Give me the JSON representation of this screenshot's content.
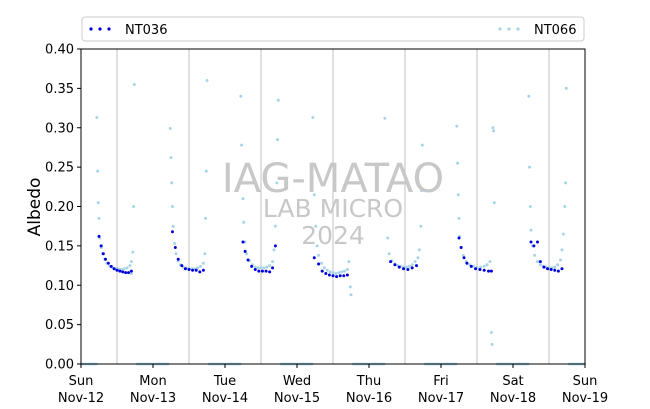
{
  "chart_data": {
    "type": "scatter",
    "title": "",
    "xlabel": "",
    "ylabel": "Albedo",
    "ylim": [
      0,
      0.4
    ],
    "yticks": [
      "0.00",
      "0.05",
      "0.10",
      "0.15",
      "0.20",
      "0.25",
      "0.30",
      "0.35",
      "0.40"
    ],
    "xlim": [
      "2023-11-12",
      "2023-11-19"
    ],
    "xticks": [
      {
        "day": "Sun",
        "date": "Nov-12"
      },
      {
        "day": "Mon",
        "date": "Nov-13"
      },
      {
        "day": "Tue",
        "date": "Nov-14"
      },
      {
        "day": "Wed",
        "date": "Nov-15"
      },
      {
        "day": "Thu",
        "date": "Nov-16"
      },
      {
        "day": "Fri",
        "date": "Nov-17"
      },
      {
        "day": "Sat",
        "date": "Nov-18"
      },
      {
        "day": "Sun",
        "date": "Nov-19"
      }
    ],
    "gridlines": "vertical at noon of each day",
    "legend": {
      "placement": "top, above plot",
      "entries": [
        "NT036",
        "NT066"
      ]
    },
    "watermark": [
      "IAG-MATAO",
      "LAB MICRO",
      "2024"
    ],
    "series": [
      {
        "name": "NT036",
        "color": "#0000dd",
        "days": [
          {
            "day": 0,
            "points": [
              [
                0.25,
                0.162
              ],
              [
                0.28,
                0.15
              ],
              [
                0.31,
                0.14
              ],
              [
                0.34,
                0.133
              ],
              [
                0.38,
                0.128
              ],
              [
                0.42,
                0.124
              ],
              [
                0.46,
                0.121
              ],
              [
                0.5,
                0.119
              ],
              [
                0.54,
                0.118
              ],
              [
                0.58,
                0.117
              ],
              [
                0.62,
                0.116
              ],
              [
                0.66,
                0.116
              ],
              [
                0.7,
                0.118
              ]
            ]
          },
          {
            "day": 1,
            "points": [
              [
                0.27,
                0.168
              ],
              [
                0.31,
                0.148
              ],
              [
                0.35,
                0.133
              ],
              [
                0.4,
                0.125
              ],
              [
                0.45,
                0.121
              ],
              [
                0.5,
                0.12
              ],
              [
                0.55,
                0.119
              ],
              [
                0.6,
                0.119
              ],
              [
                0.65,
                0.117
              ],
              [
                0.7,
                0.119
              ]
            ]
          },
          {
            "day": 2,
            "points": [
              [
                0.25,
                0.155
              ],
              [
                0.28,
                0.143
              ],
              [
                0.32,
                0.132
              ],
              [
                0.37,
                0.124
              ],
              [
                0.42,
                0.12
              ],
              [
                0.47,
                0.118
              ],
              [
                0.52,
                0.118
              ],
              [
                0.57,
                0.118
              ],
              [
                0.62,
                0.117
              ],
              [
                0.66,
                0.122
              ],
              [
                0.7,
                0.15
              ]
            ]
          },
          {
            "day": 3,
            "points": [
              [
                0.24,
                0.135
              ],
              [
                0.3,
                0.127
              ],
              [
                0.35,
                0.118
              ],
              [
                0.4,
                0.115
              ],
              [
                0.45,
                0.113
              ],
              [
                0.5,
                0.112
              ],
              [
                0.55,
                0.111
              ],
              [
                0.6,
                0.112
              ],
              [
                0.65,
                0.112
              ],
              [
                0.7,
                0.113
              ]
            ]
          },
          {
            "day": 4,
            "points": [
              [
                0.3,
                0.13
              ],
              [
                0.36,
                0.126
              ],
              [
                0.42,
                0.123
              ],
              [
                0.48,
                0.121
              ],
              [
                0.54,
                0.12
              ],
              [
                0.6,
                0.122
              ],
              [
                0.66,
                0.125
              ]
            ]
          },
          {
            "day": 5,
            "points": [
              [
                0.25,
                0.16
              ],
              [
                0.28,
                0.148
              ],
              [
                0.32,
                0.135
              ],
              [
                0.36,
                0.128
              ],
              [
                0.42,
                0.124
              ],
              [
                0.48,
                0.121
              ],
              [
                0.54,
                0.12
              ],
              [
                0.6,
                0.119
              ],
              [
                0.66,
                0.118
              ],
              [
                0.7,
                0.118
              ]
            ]
          },
          {
            "day": 6,
            "points": [
              [
                0.25,
                0.155
              ],
              [
                0.29,
                0.15
              ],
              [
                0.34,
                0.155
              ],
              [
                0.38,
                0.13
              ],
              [
                0.43,
                0.123
              ],
              [
                0.48,
                0.121
              ],
              [
                0.53,
                0.12
              ],
              [
                0.58,
                0.119
              ],
              [
                0.63,
                0.118
              ],
              [
                0.68,
                0.121
              ]
            ]
          }
        ]
      },
      {
        "name": "NT066",
        "color": "#a8d4e8",
        "days": [
          {
            "day": 0,
            "points": [
              [
                0.22,
                0.313
              ],
              [
                0.23,
                0.245
              ],
              [
                0.24,
                0.205
              ],
              [
                0.25,
                0.185
              ],
              [
                0.26,
                0.16
              ],
              [
                0.28,
                0.148
              ],
              [
                0.3,
                0.14
              ],
              [
                0.33,
                0.133
              ],
              [
                0.36,
                0.128
              ],
              [
                0.4,
                0.124
              ],
              [
                0.44,
                0.122
              ],
              [
                0.48,
                0.121
              ],
              [
                0.52,
                0.121
              ],
              [
                0.56,
                0.12
              ],
              [
                0.6,
                0.121
              ],
              [
                0.64,
                0.122
              ],
              [
                0.68,
                0.125
              ],
              [
                0.7,
                0.13
              ],
              [
                0.72,
                0.142
              ],
              [
                0.73,
                0.2
              ],
              [
                0.74,
                0.355
              ],
              [
                0.7,
                0.115
              ]
            ]
          },
          {
            "day": 1,
            "points": [
              [
                0.24,
                0.299
              ],
              [
                0.25,
                0.262
              ],
              [
                0.26,
                0.23
              ],
              [
                0.27,
                0.2
              ],
              [
                0.28,
                0.175
              ],
              [
                0.3,
                0.153
              ],
              [
                0.32,
                0.14
              ],
              [
                0.35,
                0.131
              ],
              [
                0.38,
                0.126
              ],
              [
                0.42,
                0.123
              ],
              [
                0.46,
                0.122
              ],
              [
                0.5,
                0.121
              ],
              [
                0.54,
                0.121
              ],
              [
                0.58,
                0.121
              ],
              [
                0.62,
                0.122
              ],
              [
                0.66,
                0.124
              ],
              [
                0.7,
                0.128
              ],
              [
                0.72,
                0.14
              ],
              [
                0.73,
                0.185
              ],
              [
                0.74,
                0.245
              ],
              [
                0.75,
                0.36
              ]
            ]
          },
          {
            "day": 2,
            "points": [
              [
                0.22,
                0.34
              ],
              [
                0.23,
                0.278
              ],
              [
                0.24,
                0.24
              ],
              [
                0.25,
                0.21
              ],
              [
                0.26,
                0.18
              ],
              [
                0.28,
                0.155
              ],
              [
                0.3,
                0.14
              ],
              [
                0.34,
                0.131
              ],
              [
                0.38,
                0.126
              ],
              [
                0.42,
                0.123
              ],
              [
                0.46,
                0.122
              ],
              [
                0.5,
                0.122
              ],
              [
                0.54,
                0.122
              ],
              [
                0.58,
                0.123
              ],
              [
                0.62,
                0.125
              ],
              [
                0.66,
                0.13
              ],
              [
                0.68,
                0.145
              ],
              [
                0.7,
                0.175
              ],
              [
                0.72,
                0.23
              ],
              [
                0.73,
                0.285
              ],
              [
                0.74,
                0.335
              ]
            ]
          },
          {
            "day": 3,
            "points": [
              [
                0.22,
                0.313
              ],
              [
                0.24,
                0.215
              ],
              [
                0.26,
                0.175
              ],
              [
                0.28,
                0.15
              ],
              [
                0.3,
                0.138
              ],
              [
                0.34,
                0.128
              ],
              [
                0.38,
                0.122
              ],
              [
                0.42,
                0.119
              ],
              [
                0.46,
                0.117
              ],
              [
                0.5,
                0.116
              ],
              [
                0.54,
                0.115
              ],
              [
                0.58,
                0.116
              ],
              [
                0.62,
                0.117
              ],
              [
                0.66,
                0.118
              ],
              [
                0.7,
                0.12
              ],
              [
                0.72,
                0.13
              ],
              [
                0.74,
                0.098
              ],
              [
                0.75,
                0.088
              ]
            ]
          },
          {
            "day": 4,
            "points": [
              [
                0.22,
                0.312
              ],
              [
                0.24,
                0.2
              ],
              [
                0.26,
                0.16
              ],
              [
                0.28,
                0.14
              ],
              [
                0.32,
                0.131
              ],
              [
                0.36,
                0.127
              ],
              [
                0.4,
                0.125
              ],
              [
                0.44,
                0.124
              ],
              [
                0.48,
                0.123
              ],
              [
                0.52,
                0.123
              ],
              [
                0.56,
                0.124
              ],
              [
                0.6,
                0.126
              ],
              [
                0.64,
                0.13
              ],
              [
                0.68,
                0.135
              ],
              [
                0.7,
                0.145
              ],
              [
                0.72,
                0.175
              ],
              [
                0.73,
                0.22
              ],
              [
                0.74,
                0.278
              ]
            ]
          },
          {
            "day": 5,
            "points": [
              [
                0.22,
                0.302
              ],
              [
                0.23,
                0.255
              ],
              [
                0.24,
                0.215
              ],
              [
                0.25,
                0.185
              ],
              [
                0.26,
                0.162
              ],
              [
                0.28,
                0.148
              ],
              [
                0.31,
                0.138
              ],
              [
                0.35,
                0.13
              ],
              [
                0.4,
                0.126
              ],
              [
                0.45,
                0.124
              ],
              [
                0.5,
                0.123
              ],
              [
                0.55,
                0.123
              ],
              [
                0.6,
                0.124
              ],
              [
                0.64,
                0.126
              ],
              [
                0.68,
                0.13
              ],
              [
                0.7,
                0.04
              ],
              [
                0.71,
                0.025
              ],
              [
                0.72,
                0.3
              ],
              [
                0.73,
                0.296
              ],
              [
                0.74,
                0.205
              ]
            ]
          },
          {
            "day": 6,
            "points": [
              [
                0.22,
                0.34
              ],
              [
                0.23,
                0.25
              ],
              [
                0.24,
                0.2
              ],
              [
                0.25,
                0.17
              ],
              [
                0.27,
                0.15
              ],
              [
                0.3,
                0.138
              ],
              [
                0.34,
                0.13
              ],
              [
                0.38,
                0.126
              ],
              [
                0.42,
                0.124
              ],
              [
                0.46,
                0.123
              ],
              [
                0.5,
                0.122
              ],
              [
                0.54,
                0.122
              ],
              [
                0.58,
                0.123
              ],
              [
                0.62,
                0.126
              ],
              [
                0.66,
                0.132
              ],
              [
                0.68,
                0.145
              ],
              [
                0.7,
                0.165
              ],
              [
                0.72,
                0.2
              ],
              [
                0.73,
                0.23
              ],
              [
                0.74,
                0.35
              ]
            ]
          }
        ]
      }
    ]
  }
}
